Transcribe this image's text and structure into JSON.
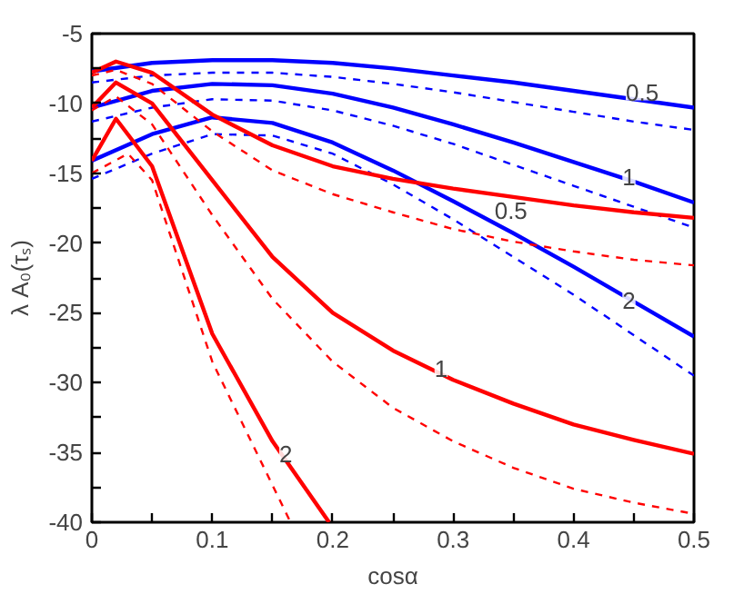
{
  "chart_data": {
    "type": "line",
    "xlabel": "cosα",
    "ylabel": "λ A₀(τₛ)",
    "xlim": [
      0,
      0.5
    ],
    "ylim": [
      -40,
      -5
    ],
    "xticks": [
      0,
      {
        "value": 0.05,
        "label": null
      },
      0.1,
      {
        "value": 0.15,
        "label": null
      },
      0.2,
      {
        "value": 0.25,
        "label": null
      },
      0.3,
      {
        "value": 0.35,
        "label": null
      },
      0.4,
      {
        "value": 0.45,
        "label": null
      },
      0.5
    ],
    "yticks": [
      -40,
      {
        "value": -37.5,
        "label": null
      },
      -35,
      {
        "value": -32.5,
        "label": null
      },
      -30,
      {
        "value": -27.5,
        "label": null
      },
      -25,
      {
        "value": -22.5,
        "label": null
      },
      -20,
      {
        "value": -17.5,
        "label": null
      },
      -15,
      {
        "value": -12.5,
        "label": null
      },
      -10,
      {
        "value": -7.5,
        "label": null
      },
      -5
    ],
    "grid": false,
    "marker": "none",
    "series": [
      {
        "color": "#0000ff",
        "line_style": "solid",
        "x": [
          0,
          0.05,
          0.1,
          0.15,
          0.2,
          0.25,
          0.3,
          0.35,
          0.4,
          0.45,
          0.5
        ],
        "values": [
          -7.7,
          -7.1,
          -6.9,
          -6.9,
          -7.1,
          -7.5,
          -8.0,
          -8.5,
          -9.1,
          -9.7,
          -10.3
        ]
      },
      {
        "color": "#0000ff",
        "line_style": "dashed",
        "x": [
          0,
          0.05,
          0.1,
          0.15,
          0.2,
          0.25,
          0.3,
          0.35,
          0.4,
          0.45,
          0.5
        ],
        "values": [
          -8.5,
          -8.0,
          -7.8,
          -7.8,
          -8.1,
          -8.6,
          -9.2,
          -9.9,
          -10.6,
          -11.3,
          -11.9
        ]
      },
      {
        "color": "#0000ff",
        "line_style": "solid",
        "x": [
          0,
          0.05,
          0.1,
          0.15,
          0.2,
          0.25,
          0.3,
          0.35,
          0.4,
          0.45,
          0.5
        ],
        "values": [
          -10.3,
          -9.1,
          -8.6,
          -8.7,
          -9.3,
          -10.3,
          -11.5,
          -12.8,
          -14.2,
          -15.6,
          -17.1
        ]
      },
      {
        "color": "#0000ff",
        "line_style": "dashed",
        "x": [
          0,
          0.05,
          0.1,
          0.15,
          0.2,
          0.25,
          0.3,
          0.35,
          0.4,
          0.45,
          0.5
        ],
        "values": [
          -11.3,
          -10.3,
          -9.7,
          -9.8,
          -10.5,
          -11.6,
          -12.9,
          -14.4,
          -15.9,
          -17.4,
          -18.9
        ]
      },
      {
        "color": "#0000ff",
        "line_style": "solid",
        "x": [
          0,
          0.05,
          0.1,
          0.15,
          0.2,
          0.25,
          0.3,
          0.35,
          0.4,
          0.45,
          0.5
        ],
        "values": [
          -14.1,
          -12.2,
          -11.0,
          -11.4,
          -12.8,
          -14.8,
          -17.0,
          -19.3,
          -21.7,
          -24.2,
          -26.7
        ]
      },
      {
        "color": "#0000ff",
        "line_style": "dashed",
        "x": [
          0,
          0.05,
          0.1,
          0.15,
          0.2,
          0.25,
          0.3,
          0.35,
          0.4,
          0.45,
          0.5
        ],
        "values": [
          -15.4,
          -13.6,
          -12.2,
          -12.3,
          -13.6,
          -15.8,
          -18.3,
          -21.0,
          -23.7,
          -26.6,
          -29.5
        ]
      },
      {
        "color": "#ff0000",
        "line_style": "solid",
        "x": [
          0,
          0.02,
          0.05,
          0.1,
          0.15,
          0.2,
          0.25,
          0.3,
          0.35,
          0.4,
          0.45,
          0.5
        ],
        "values": [
          -7.8,
          -7.0,
          -7.8,
          -10.8,
          -13.0,
          -14.5,
          -15.4,
          -16.1,
          -16.7,
          -17.3,
          -17.8,
          -18.2
        ]
      },
      {
        "color": "#ff0000",
        "line_style": "dashed",
        "x": [
          0,
          0.02,
          0.05,
          0.1,
          0.15,
          0.2,
          0.25,
          0.3,
          0.35,
          0.4,
          0.45,
          0.5
        ],
        "values": [
          -8.0,
          -7.6,
          -8.6,
          -12.0,
          -14.8,
          -16.5,
          -17.8,
          -19.0,
          -19.9,
          -20.6,
          -21.2,
          -21.6
        ]
      },
      {
        "color": "#ff0000",
        "line_style": "solid",
        "x": [
          0,
          0.02,
          0.05,
          0.1,
          0.15,
          0.2,
          0.25,
          0.3,
          0.35,
          0.4,
          0.45,
          0.5
        ],
        "values": [
          -10.3,
          -8.5,
          -10.0,
          -15.5,
          -21.0,
          -25.0,
          -27.7,
          -29.8,
          -31.5,
          -33.0,
          -34.1,
          -35.1
        ]
      },
      {
        "color": "#ff0000",
        "line_style": "dashed",
        "x": [
          0,
          0.02,
          0.05,
          0.1,
          0.15,
          0.2,
          0.25,
          0.3,
          0.35,
          0.4,
          0.45,
          0.5
        ],
        "values": [
          -10.5,
          -9.5,
          -11.5,
          -18.0,
          -24.0,
          -28.5,
          -31.8,
          -34.2,
          -36.1,
          -37.6,
          -38.6,
          -39.4
        ]
      },
      {
        "color": "#ff0000",
        "line_style": "solid",
        "x": [
          0,
          0.02,
          0.05,
          0.1,
          0.15,
          0.197
        ],
        "values": [
          -14.1,
          -11.1,
          -14.5,
          -26.5,
          -34.2,
          -40
        ]
      },
      {
        "color": "#ff0000",
        "line_style": "dashed",
        "x": [
          0,
          0.03,
          0.05,
          0.1,
          0.165
        ],
        "values": [
          -15.0,
          -13.6,
          -15.5,
          -28.5,
          -40
        ]
      }
    ],
    "annotations": [
      {
        "text": "0.5",
        "x": 0.457,
        "y": -9.2
      },
      {
        "text": "1",
        "x": 0.446,
        "y": -15.3
      },
      {
        "text": "0.5",
        "x": 0.348,
        "y": -17.7
      },
      {
        "text": "2",
        "x": 0.446,
        "y": -24.1
      },
      {
        "text": "1",
        "x": 0.29,
        "y": -29.0
      },
      {
        "text": "2",
        "x": 0.161,
        "y": -35.1
      }
    ]
  }
}
